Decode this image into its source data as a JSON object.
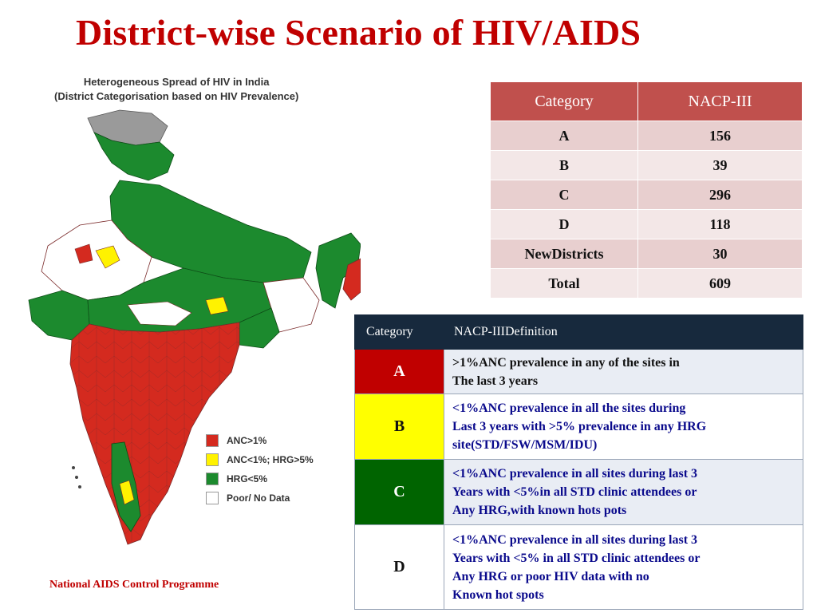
{
  "slide": {
    "title": "District-wise Scenario of HIV/AIDS",
    "footer": "National AIDS Control Programme"
  },
  "map": {
    "heading_line1": "Heterogeneous Spread of HIV in India",
    "heading_line2": "(District Categorisation based on HIV Prevalence)",
    "colors": {
      "anc_gt_1": "#d42a1f",
      "anc_lt_1_hrg": "#fff200",
      "hrg_lt_5": "#1c8a2e",
      "poor_data": "#ffffff",
      "boundary": "#7a2a2a"
    },
    "legend": [
      {
        "label": "ANC>1%",
        "color": "#d42a1f"
      },
      {
        "label": "ANC<1%; HRG>5%",
        "color": "#fff200"
      },
      {
        "label": "HRG<5%",
        "color": "#1c8a2e"
      },
      {
        "label": "Poor/ No Data",
        "color": "#ffffff"
      }
    ]
  },
  "counts_table": {
    "headers": [
      "Category",
      "NACP-III"
    ],
    "rows": [
      {
        "category": "A",
        "value": "156"
      },
      {
        "category": "B",
        "value": "39"
      },
      {
        "category": "C",
        "value": "296"
      },
      {
        "category": "D",
        "value": "118"
      },
      {
        "category": "NewDistricts",
        "value": "30"
      },
      {
        "category": "Total",
        "value": "609"
      }
    ]
  },
  "definitions_table": {
    "headers": [
      "Category",
      "NACP-IIIDefinition"
    ],
    "rows": [
      {
        "category": "A",
        "color": "#c00000",
        "lines": [
          ">1%ANC prevalence in any of the sites in",
          "The last 3 years"
        ]
      },
      {
        "category": "B",
        "color": "#ffff00",
        "lines": [
          "<1%ANC prevalence in all the sites during",
          "Last 3 years with >5% prevalence in any HRG",
          "site(STD/FSW/MSM/IDU)"
        ]
      },
      {
        "category": "C",
        "color": "#006400",
        "lines": [
          "<1%ANC prevalence in all sites during last 3",
          "Years with <5%in all STD clinic attendees or",
          "Any HRG,with known hots pots"
        ]
      },
      {
        "category": "D",
        "color": "#ffffff",
        "lines": [
          "<1%ANC prevalence in all sites during last 3",
          "Years with <5% in all STD clinic attendees or",
          "Any HRG or poor HIV data with no",
          "Known hot spots"
        ]
      }
    ]
  }
}
